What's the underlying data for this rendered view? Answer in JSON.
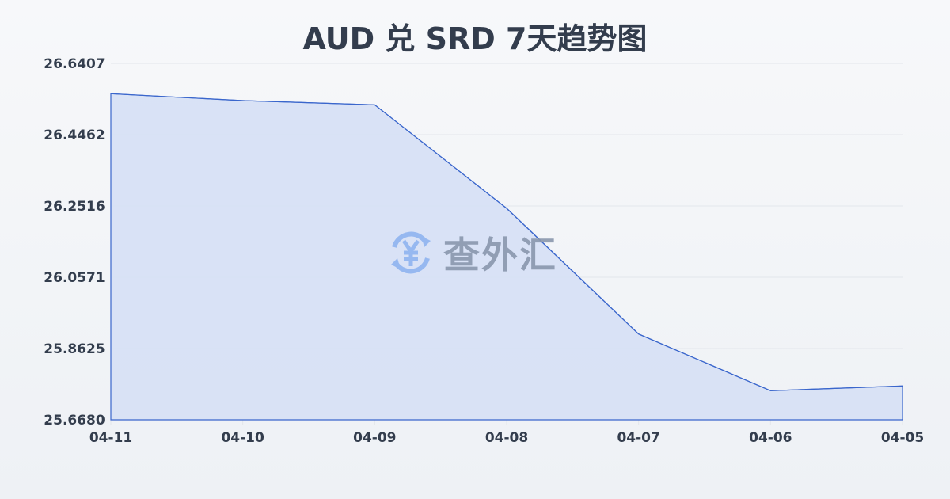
{
  "chart_data": {
    "type": "area",
    "title": "AUD 兑 SRD 7天趋势图",
    "xlabel": "",
    "ylabel": "",
    "categories": [
      "04-11",
      "04-10",
      "04-09",
      "04-08",
      "04-07",
      "04-06",
      "04-05"
    ],
    "values": [
      26.5579,
      26.5391,
      26.5276,
      26.2451,
      25.9021,
      25.7473,
      25.7603
    ],
    "ylim": [
      25.668,
      26.6407
    ],
    "yticks": [
      "26.6407",
      "26.4462",
      "26.2516",
      "26.0571",
      "25.8625",
      "25.6680"
    ],
    "grid": true,
    "colors": {
      "line": "#3a66cc",
      "fill": "#d6e0f5",
      "grid": "#e3e6eb",
      "text": "#333d4d"
    }
  },
  "watermark": {
    "text": "查外汇",
    "icon": "yen-exchange-icon",
    "color": "#8fb4f0"
  }
}
